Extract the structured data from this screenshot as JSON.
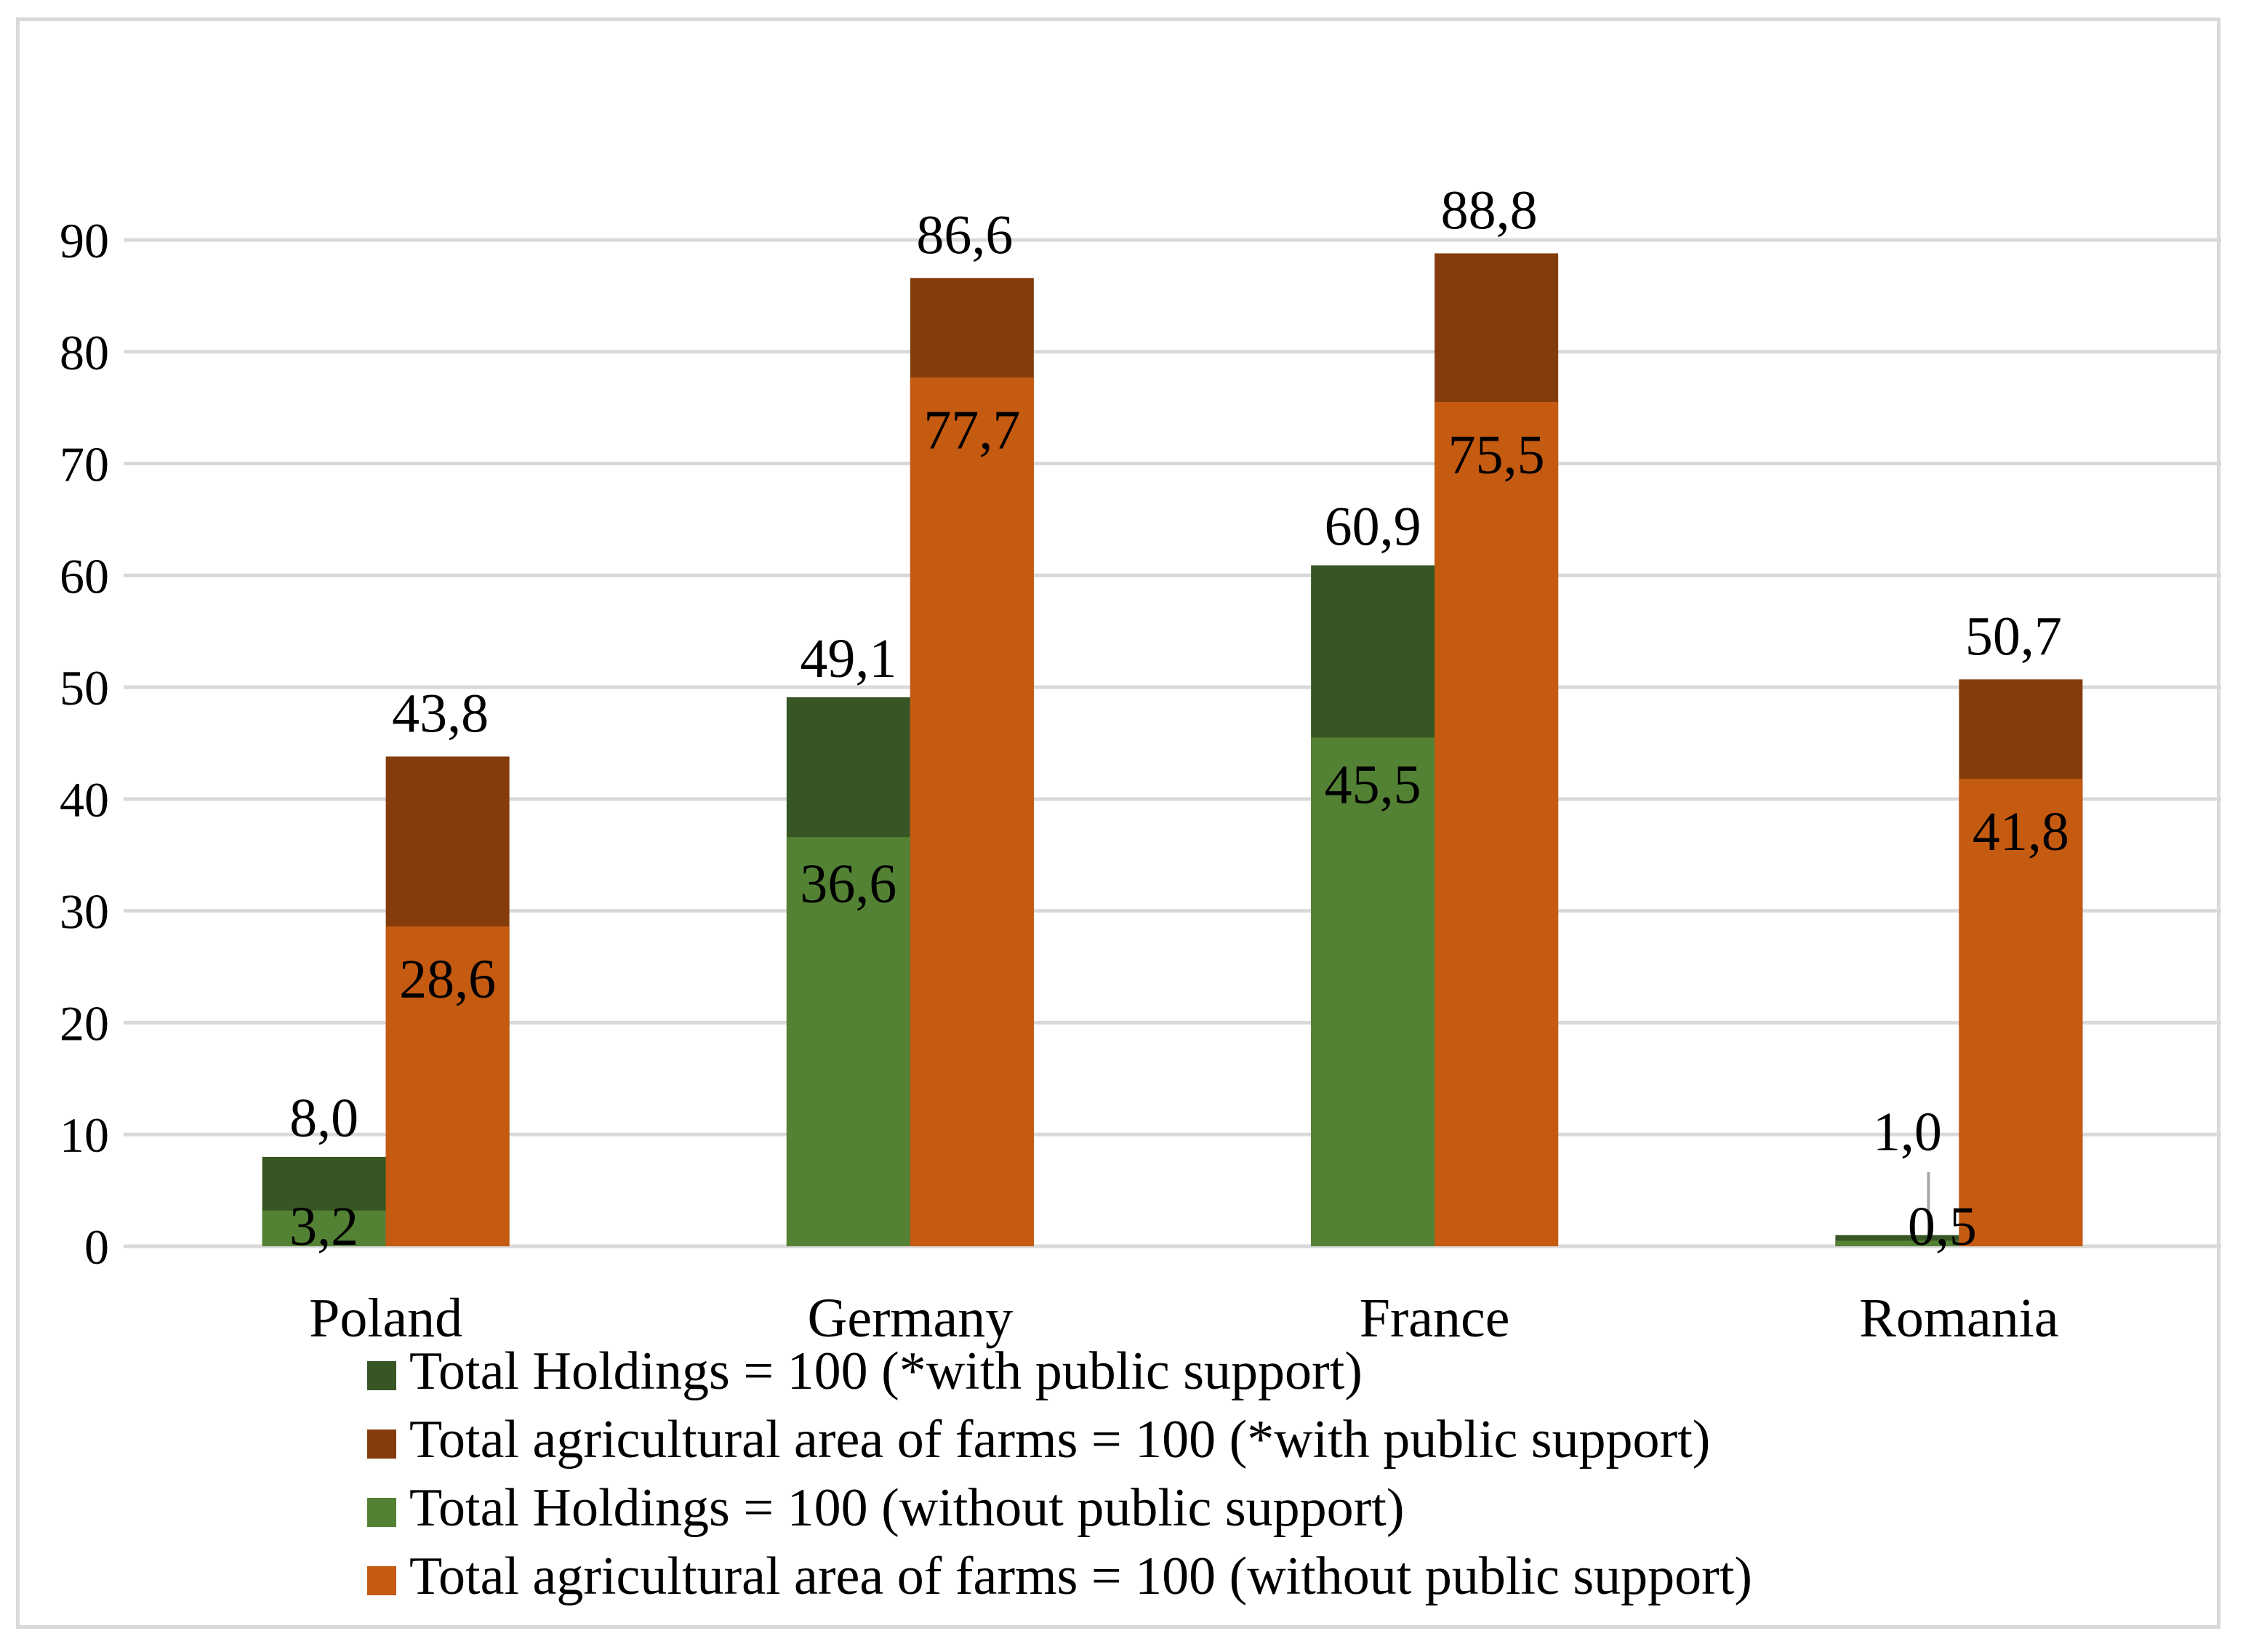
{
  "chart_data": {
    "type": "bar",
    "categories": [
      "Poland",
      "Germany",
      "France",
      "Romania"
    ],
    "ylim": [
      0,
      90
    ],
    "yticks": [
      0,
      10,
      20,
      30,
      40,
      50,
      60,
      70,
      80,
      90
    ],
    "grid": true,
    "legend_position": "bottom",
    "series": [
      {
        "name": "Total Holdings = 100 (*with public support)",
        "color": "#375623",
        "values": [
          8.0,
          49.1,
          60.9,
          1.0
        ],
        "labels": [
          "8,0",
          "49,1",
          "60,9",
          "1,0"
        ]
      },
      {
        "name": "Total agricultural area of farms = 100 (*with public support)",
        "color": "#843C0C",
        "values": [
          43.8,
          86.6,
          88.8,
          50.7
        ],
        "labels": [
          "43,8",
          "86,6",
          "88,8",
          "50,7"
        ]
      },
      {
        "name": "Total Holdings = 100 (without public support)",
        "color": "#548235",
        "values": [
          3.2,
          36.6,
          45.5,
          0.5
        ],
        "labels": [
          "3,2",
          "36,6",
          "45,5",
          "0,5"
        ]
      },
      {
        "name": "Total agricultural area of farms = 100 (without public support)",
        "color": "#C55A11",
        "values": [
          28.6,
          77.7,
          75.5,
          41.8
        ],
        "labels": [
          "28,6",
          "77,7",
          "75,5",
          "41,8"
        ]
      }
    ]
  }
}
